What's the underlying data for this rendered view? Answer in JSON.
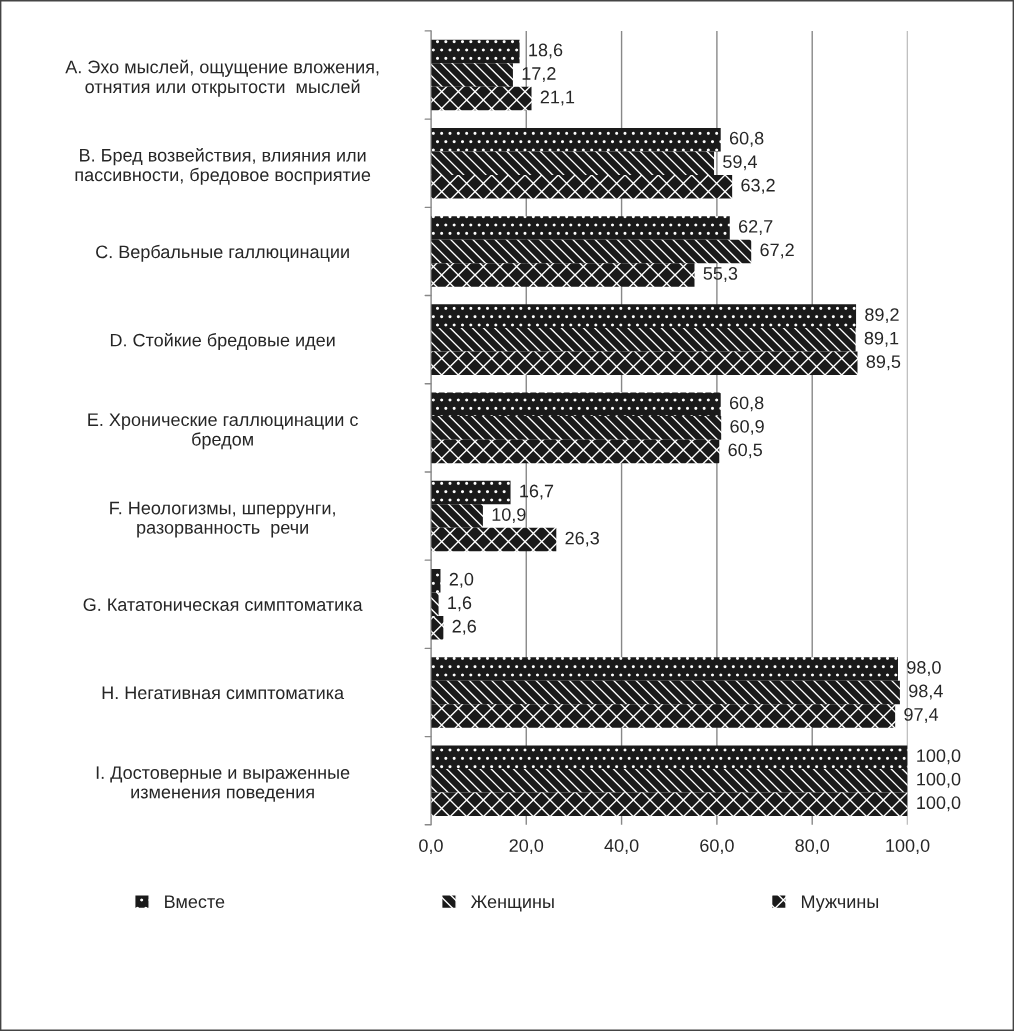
{
  "chart_data": {
    "type": "bar",
    "orientation": "horizontal",
    "categories": [
      "A. Эхо мыслей, ощущение вложения,\nотнятия или открытости  мыслей",
      "B. Бред возвействия, влияния или\nпассивности, бредовое восприятие",
      "C. Вербальные галлюцинации",
      "D. Стойкие бредовые идеи",
      "E. Хронические галлюцинации с\nбредом",
      "F. Неологизмы, шперрунги,\nразорванность  речи",
      "G. Кататоническая симптоматика",
      "H. Негативная симптоматика",
      "I. Достоверные и выраженные\nизменения поведения"
    ],
    "series": [
      {
        "name": "Вместе",
        "color": "#1a1a1a",
        "values": [
          18.6,
          60.8,
          62.7,
          89.2,
          60.8,
          16.7,
          2.0,
          98.0,
          100.0
        ],
        "value_labels": [
          "18,6",
          "60,8",
          "62,7",
          "89,2",
          "60,8",
          "16,7",
          "2,0",
          "98,0",
          "100,0"
        ]
      },
      {
        "name": "Женщины",
        "color": "#1a1a1a",
        "values": [
          17.2,
          59.4,
          67.2,
          89.1,
          60.9,
          10.9,
          1.6,
          98.4,
          100.0
        ],
        "value_labels": [
          "17,2",
          "59,4",
          "67,2",
          "89,1",
          "60,9",
          "10,9",
          "1,6",
          "98,4",
          "100,0"
        ]
      },
      {
        "name": "Мужчины",
        "color": "#1a1a1a",
        "values": [
          21.1,
          63.2,
          55.3,
          89.5,
          60.5,
          26.3,
          2.6,
          97.4,
          100.0
        ],
        "value_labels": [
          "21,1",
          "63,2",
          "55,3",
          "89,5",
          "60,5",
          "26,3",
          "2,6",
          "97,4",
          "100,0"
        ]
      }
    ],
    "xlim": [
      0,
      100
    ],
    "xticks": [
      {
        "value": 0,
        "label": "0,0"
      },
      {
        "value": 20,
        "label": "20,0"
      },
      {
        "value": 40,
        "label": "40,0"
      },
      {
        "value": 60,
        "label": "60,0"
      },
      {
        "value": 80,
        "label": "80,0"
      },
      {
        "value": 100,
        "label": "100,0"
      }
    ],
    "grid": "x",
    "legend": "bottom"
  }
}
